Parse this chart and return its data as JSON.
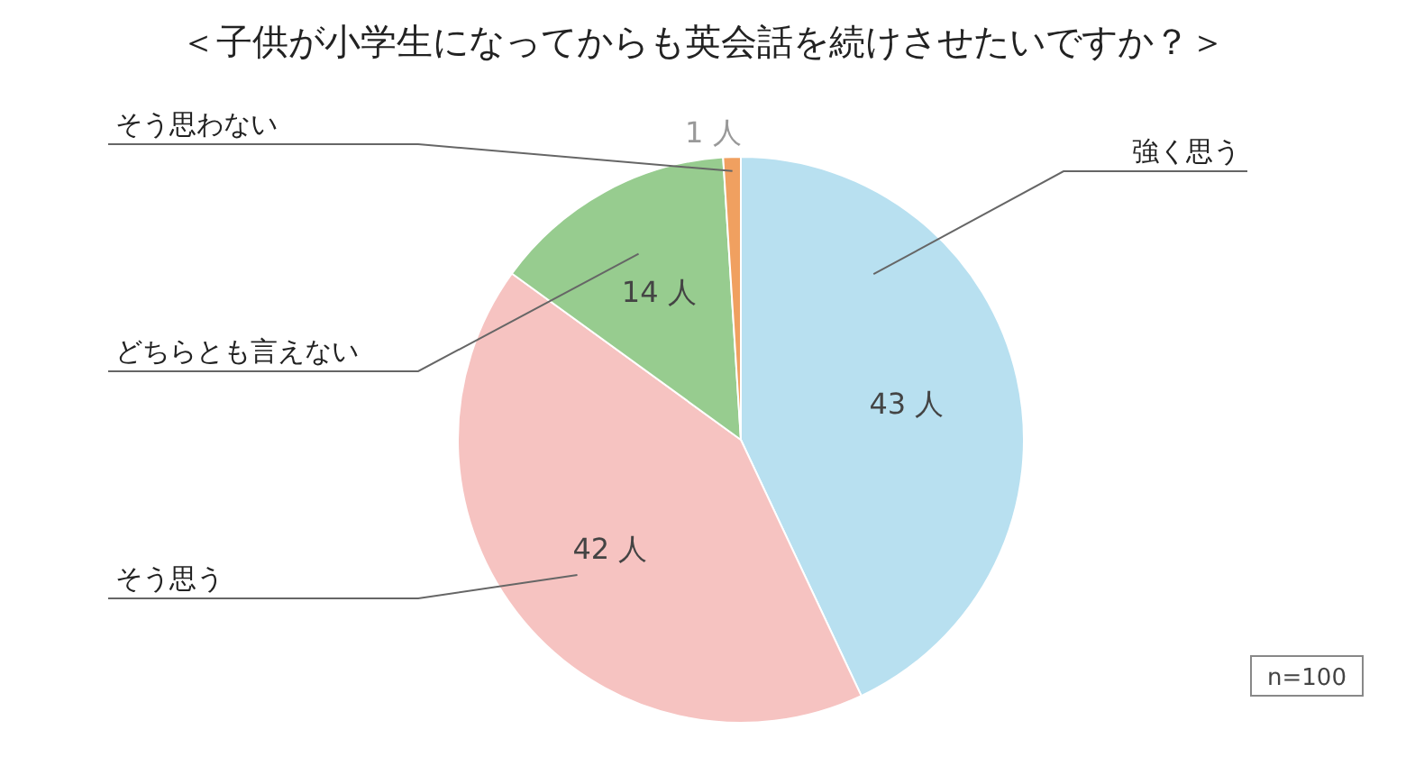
{
  "chart_data": {
    "type": "pie",
    "title": "＜子供が小学生になってからも英会話を続けさせたいですか？＞",
    "categories": [
      "強く思う",
      "そう思う",
      "どちらとも言えない",
      "そう思わない"
    ],
    "values": [
      43,
      42,
      14,
      1
    ],
    "colors": [
      "#b8e0f0",
      "#f6c3c1",
      "#97cc8f",
      "#f0a060"
    ],
    "value_labels": [
      "43 人",
      "42 人",
      "14 人",
      "1 人"
    ],
    "annotations": [
      "n=100"
    ]
  }
}
